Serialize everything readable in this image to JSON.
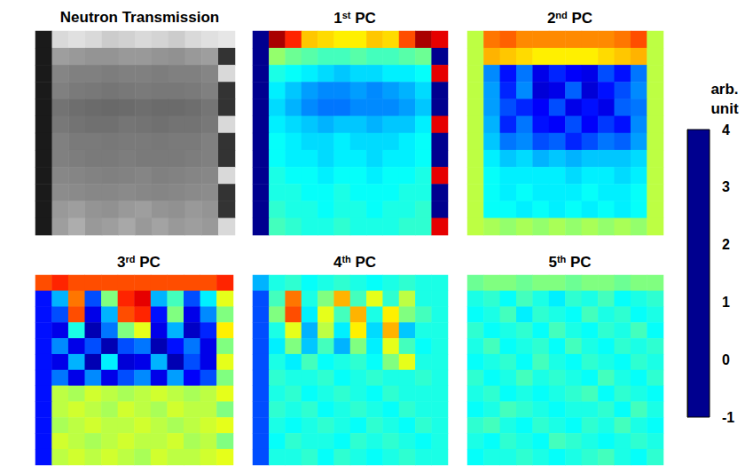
{
  "chart_data": {
    "type": "heatmap",
    "tick_labels": false,
    "panels": [
      {
        "title": "Neutron Transmission",
        "color": "gray",
        "zlim": [
          0,
          1
        ],
        "cells": [
          [
            0.1,
            0.85,
            0.88,
            0.85,
            0.8,
            0.82,
            0.85,
            0.83,
            0.8,
            0.85,
            0.88,
            0.9
          ],
          [
            0.1,
            0.62,
            0.6,
            0.58,
            0.58,
            0.6,
            0.6,
            0.58,
            0.57,
            0.6,
            0.62,
            0.2
          ],
          [
            0.1,
            0.52,
            0.5,
            0.5,
            0.49,
            0.5,
            0.5,
            0.49,
            0.5,
            0.5,
            0.52,
            0.85
          ],
          [
            0.1,
            0.5,
            0.48,
            0.47,
            0.46,
            0.47,
            0.48,
            0.47,
            0.47,
            0.48,
            0.5,
            0.2
          ],
          [
            0.1,
            0.45,
            0.43,
            0.42,
            0.41,
            0.42,
            0.43,
            0.42,
            0.42,
            0.43,
            0.46,
            0.2
          ],
          [
            0.1,
            0.47,
            0.45,
            0.44,
            0.44,
            0.46,
            0.45,
            0.44,
            0.45,
            0.45,
            0.47,
            0.85
          ],
          [
            0.1,
            0.5,
            0.48,
            0.48,
            0.47,
            0.48,
            0.48,
            0.47,
            0.48,
            0.48,
            0.5,
            0.2
          ],
          [
            0.1,
            0.5,
            0.49,
            0.48,
            0.48,
            0.49,
            0.48,
            0.48,
            0.48,
            0.49,
            0.5,
            0.2
          ],
          [
            0.1,
            0.53,
            0.52,
            0.51,
            0.5,
            0.51,
            0.52,
            0.5,
            0.51,
            0.52,
            0.53,
            0.85
          ],
          [
            0.1,
            0.55,
            0.54,
            0.53,
            0.53,
            0.54,
            0.53,
            0.52,
            0.53,
            0.54,
            0.55,
            0.2
          ],
          [
            0.1,
            0.6,
            0.62,
            0.58,
            0.57,
            0.6,
            0.62,
            0.58,
            0.57,
            0.6,
            0.58,
            0.2
          ],
          [
            0.1,
            0.62,
            0.68,
            0.6,
            0.62,
            0.66,
            0.6,
            0.64,
            0.6,
            0.62,
            0.6,
            0.85
          ]
        ]
      },
      {
        "title": "1st PC",
        "color": "jet",
        "cells": [
          [
            -1,
            3.8,
            3.2,
            2.4,
            2.3,
            2.2,
            2.2,
            2.4,
            2.3,
            3.0,
            3.8,
            3.5
          ],
          [
            -1,
            1.6,
            1.4,
            1.3,
            1.2,
            1.2,
            1.3,
            1.2,
            1.2,
            1.3,
            1.4,
            -1
          ],
          [
            -1,
            1.0,
            0.9,
            0.8,
            0.7,
            0.6,
            0.7,
            0.7,
            0.8,
            0.8,
            0.9,
            3.5
          ],
          [
            -1,
            0.8,
            0.6,
            0.4,
            0.3,
            0.3,
            0.4,
            0.3,
            0.4,
            0.5,
            0.7,
            -1
          ],
          [
            -1,
            0.7,
            0.5,
            0.3,
            0.2,
            0.2,
            0.3,
            0.3,
            0.3,
            0.4,
            0.6,
            -1
          ],
          [
            -1,
            0.8,
            0.7,
            0.6,
            0.5,
            0.6,
            0.6,
            0.5,
            0.6,
            0.6,
            0.8,
            3.5
          ],
          [
            -1,
            0.9,
            0.8,
            0.7,
            0.7,
            0.8,
            0.7,
            0.7,
            0.7,
            0.8,
            0.9,
            -1
          ],
          [
            -1,
            0.9,
            0.8,
            0.8,
            0.7,
            0.8,
            0.8,
            0.7,
            0.8,
            0.8,
            0.9,
            -1
          ],
          [
            -1,
            1.0,
            0.9,
            0.9,
            0.8,
            0.9,
            0.9,
            0.8,
            0.9,
            0.9,
            1.0,
            3.5
          ],
          [
            -1,
            1.0,
            1.0,
            0.9,
            0.9,
            1.0,
            0.9,
            0.9,
            0.9,
            1.0,
            1.0,
            -1
          ],
          [
            -1,
            1.1,
            1.0,
            1.0,
            0.9,
            1.0,
            1.0,
            0.9,
            1.0,
            1.0,
            1.1,
            -1
          ],
          [
            -1,
            1.2,
            1.1,
            1.0,
            1.0,
            1.1,
            1.0,
            1.0,
            1.0,
            1.1,
            1.1,
            3.5
          ]
        ]
      },
      {
        "title": "2nd PC",
        "color": "jet",
        "cells": [
          [
            1.8,
            2.8,
            2.9,
            2.7,
            2.7,
            2.7,
            2.7,
            2.7,
            2.7,
            2.8,
            3.0,
            1.8
          ],
          [
            1.8,
            2.5,
            2.4,
            2.3,
            2.2,
            2.2,
            2.2,
            2.2,
            2.3,
            2.4,
            2.5,
            1.8
          ],
          [
            1.8,
            0.3,
            -0.3,
            0.2,
            -0.5,
            -0.2,
            -0.4,
            -0.5,
            0.0,
            -0.3,
            0.2,
            1.8
          ],
          [
            1.8,
            0.4,
            -0.2,
            0.3,
            -0.6,
            -0.5,
            0.1,
            -0.6,
            -0.3,
            0.0,
            0.3,
            1.8
          ],
          [
            1.8,
            0.4,
            0.0,
            -0.2,
            -0.4,
            0.0,
            -0.5,
            -0.3,
            -0.5,
            0.1,
            0.2,
            1.8
          ],
          [
            1.8,
            0.5,
            -0.2,
            0.2,
            -0.3,
            -0.4,
            0.0,
            -0.4,
            -0.1,
            -0.3,
            0.3,
            1.8
          ],
          [
            1.8,
            0.6,
            0.2,
            0.3,
            0.0,
            0.1,
            -0.2,
            0.0,
            0.2,
            0.1,
            0.4,
            1.8
          ],
          [
            1.8,
            0.8,
            0.6,
            0.7,
            0.5,
            0.6,
            0.5,
            0.6,
            0.6,
            0.6,
            0.7,
            1.8
          ],
          [
            1.8,
            0.9,
            0.8,
            0.8,
            0.8,
            0.8,
            0.7,
            0.8,
            0.8,
            0.7,
            0.8,
            1.8
          ],
          [
            1.8,
            0.9,
            0.8,
            0.9,
            0.8,
            0.8,
            0.8,
            0.9,
            0.8,
            0.8,
            0.9,
            1.8
          ],
          [
            1.8,
            0.9,
            0.9,
            0.8,
            0.9,
            0.8,
            0.9,
            0.8,
            0.9,
            0.8,
            0.9,
            1.8
          ],
          [
            1.8,
            1.7,
            1.6,
            1.7,
            1.6,
            1.7,
            1.6,
            1.7,
            1.6,
            1.7,
            1.6,
            1.8
          ]
        ]
      },
      {
        "title": "3rd PC",
        "color": "jet",
        "cells": [
          [
            3.0,
            3.2,
            3.0,
            3.0,
            3.0,
            3.0,
            3.0,
            3.0,
            3.0,
            3.0,
            3.0,
            3.2
          ],
          [
            -0.3,
            0.5,
            2.8,
            0.0,
            1.5,
            3.2,
            3.5,
            0.5,
            1.2,
            0.0,
            0.8,
            2.0
          ],
          [
            -0.3,
            0.0,
            3.0,
            -0.5,
            0.5,
            3.0,
            3.2,
            -0.3,
            1.5,
            -0.5,
            0.3,
            1.5
          ],
          [
            -0.3,
            -0.5,
            1.0,
            -0.8,
            0.2,
            1.5,
            2.0,
            -0.5,
            0.5,
            -0.7,
            -0.2,
            2.2
          ],
          [
            -0.3,
            0.3,
            -0.5,
            0.0,
            -0.8,
            0.0,
            0.2,
            -0.8,
            -0.3,
            0.2,
            -0.5,
            1.5
          ],
          [
            -0.3,
            -0.5,
            0.5,
            -0.8,
            0.8,
            -0.6,
            -0.5,
            0.5,
            -0.8,
            0.0,
            -0.5,
            2.0
          ],
          [
            -0.3,
            0.2,
            -0.5,
            0.3,
            -0.5,
            0.0,
            0.3,
            -0.5,
            0.4,
            -0.4,
            0.0,
            1.5
          ],
          [
            -0.3,
            1.8,
            1.7,
            1.9,
            1.8,
            1.7,
            1.8,
            1.9,
            1.8,
            1.7,
            1.8,
            2.0
          ],
          [
            -0.3,
            1.8,
            1.9,
            1.8,
            1.7,
            1.9,
            1.8,
            1.7,
            1.9,
            1.8,
            1.8,
            1.5
          ],
          [
            -0.3,
            1.7,
            1.8,
            1.9,
            1.8,
            1.8,
            1.9,
            1.8,
            1.7,
            1.8,
            1.9,
            2.0
          ],
          [
            -0.3,
            1.9,
            1.8,
            1.7,
            1.8,
            1.9,
            1.8,
            1.8,
            1.9,
            1.7,
            1.8,
            1.5
          ],
          [
            -0.3,
            1.8,
            1.9,
            1.8,
            1.9,
            1.8,
            1.7,
            1.9,
            1.8,
            1.8,
            1.9,
            2.0
          ]
        ]
      },
      {
        "title": "4th PC",
        "color": "jet",
        "cells": [
          [
            0.5,
            1.0,
            1.1,
            0.9,
            1.0,
            1.1,
            1.0,
            0.9,
            1.0,
            1.1,
            1.0,
            1.0
          ],
          [
            0.0,
            1.2,
            2.8,
            1.0,
            1.5,
            2.5,
            1.2,
            2.0,
            1.1,
            1.8,
            1.0,
            1.0
          ],
          [
            0.0,
            1.5,
            3.0,
            0.8,
            2.0,
            1.2,
            2.5,
            1.0,
            2.2,
            1.5,
            1.2,
            1.0
          ],
          [
            0.0,
            1.0,
            2.0,
            0.5,
            1.8,
            0.8,
            2.2,
            0.7,
            2.5,
            0.6,
            1.0,
            1.0
          ],
          [
            0.0,
            0.8,
            1.5,
            0.6,
            1.2,
            0.5,
            1.5,
            0.8,
            2.0,
            1.2,
            0.9,
            1.0
          ],
          [
            0.0,
            1.0,
            0.8,
            1.2,
            0.9,
            1.0,
            1.1,
            0.9,
            1.5,
            2.0,
            1.0,
            1.0
          ],
          [
            0.0,
            1.1,
            1.0,
            1.0,
            1.1,
            0.9,
            1.0,
            1.1,
            1.0,
            1.0,
            1.1,
            1.0
          ],
          [
            0.0,
            1.0,
            1.1,
            0.9,
            1.0,
            1.1,
            1.0,
            0.9,
            1.1,
            1.0,
            1.0,
            1.0
          ],
          [
            0.0,
            1.1,
            1.0,
            1.1,
            0.9,
            1.0,
            1.1,
            1.0,
            0.9,
            1.1,
            1.0,
            1.0
          ],
          [
            0.0,
            1.0,
            0.9,
            1.0,
            1.1,
            1.0,
            0.9,
            1.1,
            1.0,
            0.9,
            1.1,
            1.0
          ],
          [
            0.0,
            0.9,
            1.1,
            1.0,
            1.0,
            0.9,
            1.1,
            1.0,
            1.1,
            1.0,
            0.9,
            1.0
          ],
          [
            0.0,
            1.0,
            1.0,
            1.1,
            0.9,
            1.1,
            1.0,
            0.9,
            1.0,
            1.1,
            1.0,
            1.0
          ]
        ]
      },
      {
        "title": "5th PC",
        "color": "jet",
        "cells": [
          [
            1.4,
            1.5,
            1.5,
            1.4,
            1.5,
            1.5,
            1.4,
            1.5,
            1.5,
            1.4,
            1.5,
            1.5
          ],
          [
            1.0,
            1.1,
            0.9,
            1.2,
            1.0,
            0.8,
            1.1,
            1.0,
            1.2,
            0.9,
            1.0,
            1.1
          ],
          [
            0.9,
            1.0,
            1.2,
            0.8,
            1.1,
            1.0,
            0.9,
            1.2,
            1.0,
            1.1,
            0.9,
            1.0
          ],
          [
            1.1,
            0.9,
            1.0,
            1.1,
            0.9,
            1.2,
            1.0,
            0.9,
            1.1,
            1.0,
            1.2,
            0.9
          ],
          [
            1.0,
            1.2,
            0.9,
            1.0,
            1.1,
            0.9,
            1.2,
            1.0,
            0.9,
            1.1,
            1.0,
            1.1
          ],
          [
            0.9,
            1.0,
            1.1,
            0.9,
            1.2,
            1.0,
            0.9,
            1.1,
            1.0,
            0.9,
            1.1,
            1.0
          ],
          [
            1.1,
            0.9,
            1.0,
            1.2,
            1.0,
            1.1,
            1.0,
            0.9,
            1.2,
            1.0,
            0.9,
            1.1
          ],
          [
            1.0,
            1.1,
            0.9,
            1.0,
            0.9,
            1.0,
            1.1,
            1.2,
            0.9,
            1.1,
            1.0,
            0.9
          ],
          [
            0.9,
            1.0,
            1.2,
            1.1,
            1.0,
            0.9,
            1.0,
            1.0,
            1.1,
            0.9,
            1.2,
            1.0
          ],
          [
            1.1,
            1.2,
            1.0,
            0.9,
            1.1,
            1.0,
            0.9,
            1.1,
            1.0,
            1.2,
            1.0,
            0.9
          ],
          [
            1.0,
            0.9,
            1.1,
            1.0,
            0.9,
            1.2,
            1.1,
            1.0,
            0.9,
            1.0,
            1.1,
            1.0
          ],
          [
            0.9,
            1.0,
            1.0,
            1.1,
            1.0,
            0.9,
            1.0,
            1.1,
            1.2,
            1.0,
            0.9,
            1.1
          ]
        ]
      }
    ],
    "colorbar": {
      "title": "arb. unit",
      "range": [
        -1,
        4
      ],
      "ticks": [
        -1,
        0,
        1,
        2,
        3,
        4
      ]
    }
  }
}
